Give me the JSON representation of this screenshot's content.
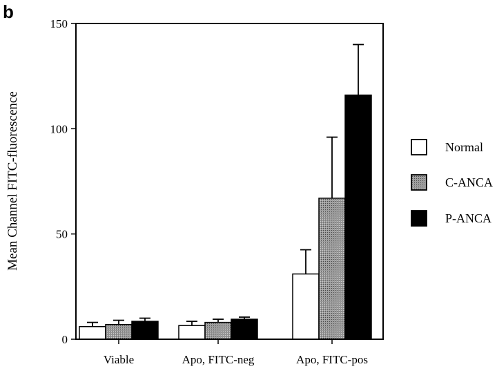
{
  "panel_label": "b",
  "colors": {
    "Normal": "#ffffff",
    "C-ANCA": "#8c8c8c",
    "P-ANCA": "#000000",
    "axis": "#000000"
  },
  "chart_data": {
    "type": "bar",
    "categories": [
      "Viable",
      "Apo, FITC-neg",
      "Apo, FITC-pos"
    ],
    "series": [
      {
        "name": "Normal",
        "values": [
          6,
          6.5,
          31
        ],
        "errors": [
          2,
          2,
          11.5
        ]
      },
      {
        "name": "C-ANCA",
        "values": [
          7,
          8,
          67
        ],
        "errors": [
          2,
          1.5,
          29
        ]
      },
      {
        "name": "P-ANCA",
        "values": [
          8.5,
          9.5,
          116
        ],
        "errors": [
          1.5,
          1,
          24
        ]
      }
    ],
    "title": "",
    "xlabel": "",
    "ylabel": "Mean Channel FITC-fluorescence",
    "ylim": [
      0,
      150
    ],
    "yticks": [
      0,
      50,
      100,
      150
    ],
    "legend_position": "right",
    "error_bars": "upper"
  }
}
